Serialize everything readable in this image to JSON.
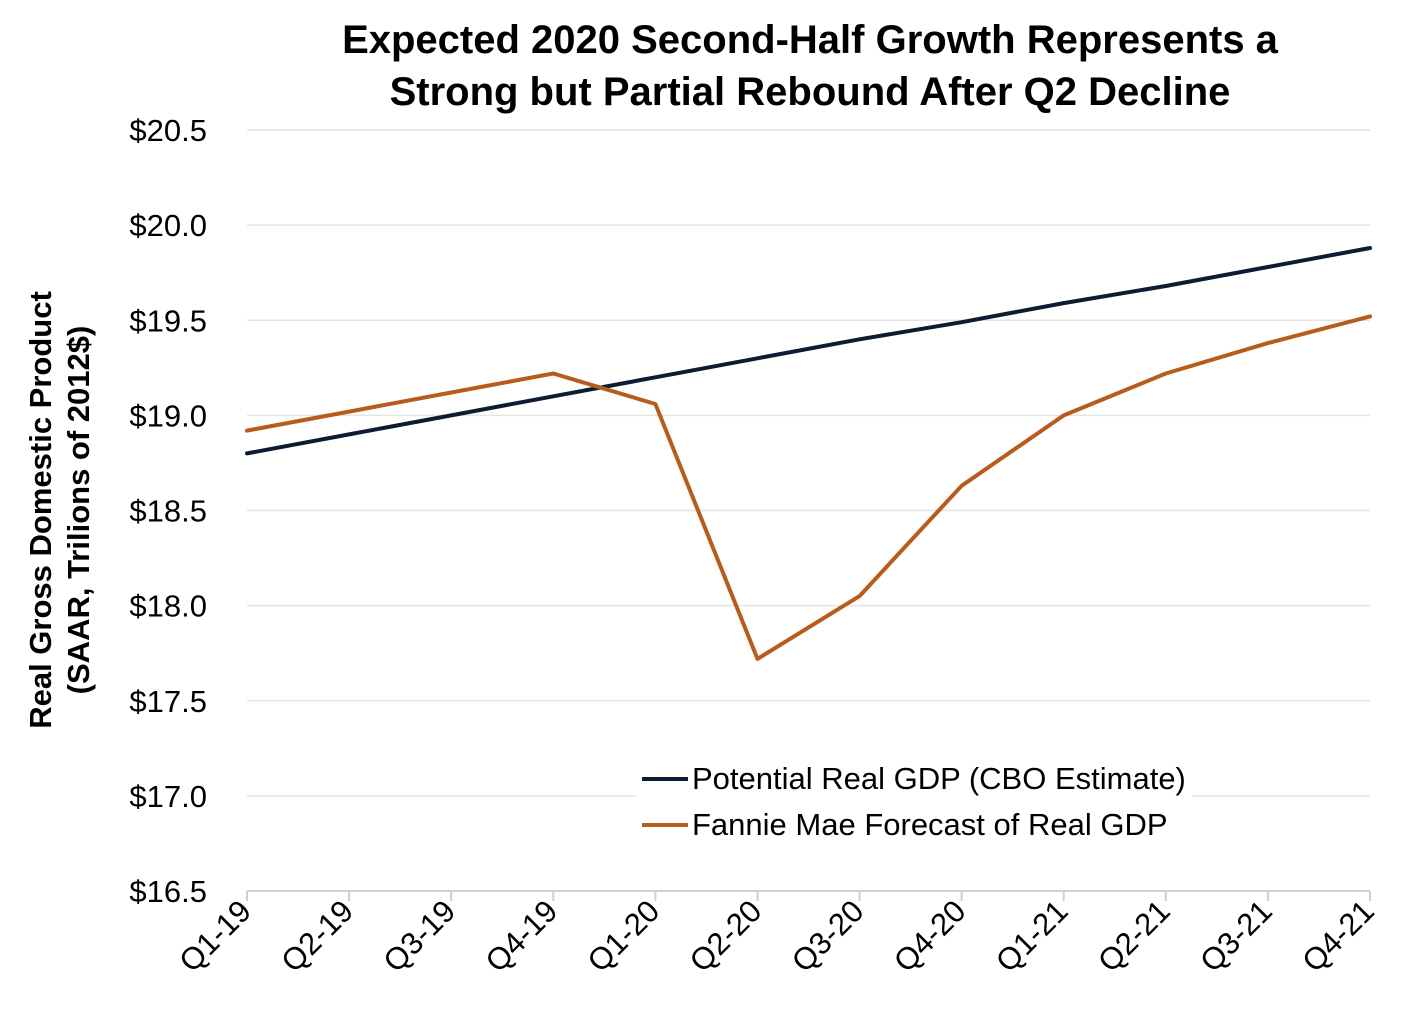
{
  "chart_data": {
    "type": "line",
    "title": [
      "Expected 2020 Second-Half Growth Represents a",
      "Strong but Partial Rebound After Q2 Decline"
    ],
    "ylabel": [
      "Real Gross Domestic Product",
      "(SAAR, Trilions of 2012$)"
    ],
    "xlabel": "",
    "categories": [
      "Q1-19",
      "Q2-19",
      "Q3-19",
      "Q4-19",
      "Q1-20",
      "Q2-20",
      "Q3-20",
      "Q4-20",
      "Q1-21",
      "Q2-21",
      "Q3-21",
      "Q4-21"
    ],
    "ylim": [
      16.5,
      20.5
    ],
    "yticks": [
      16.5,
      17.0,
      17.5,
      18.0,
      18.5,
      19.0,
      19.5,
      20.0,
      20.5
    ],
    "ytick_labels": [
      "$16.5",
      "$17.0",
      "$17.5",
      "$18.0",
      "$18.5",
      "$19.0",
      "$19.5",
      "$20.0",
      "$20.5"
    ],
    "grid": true,
    "legend_position": "bottom-right",
    "series": [
      {
        "name": "Potential Real GDP (CBO Estimate)",
        "color": "#0d1b34",
        "values": [
          18.8,
          18.9,
          19.0,
          19.1,
          19.2,
          19.3,
          19.4,
          19.49,
          19.59,
          19.68,
          19.78,
          19.88
        ]
      },
      {
        "name": "Fannie Mae Forecast of Real GDP",
        "color": "#b85c1e",
        "values": [
          18.92,
          19.02,
          19.12,
          19.22,
          19.06,
          17.72,
          18.05,
          18.63,
          19.0,
          19.22,
          19.38,
          19.52
        ]
      }
    ]
  }
}
